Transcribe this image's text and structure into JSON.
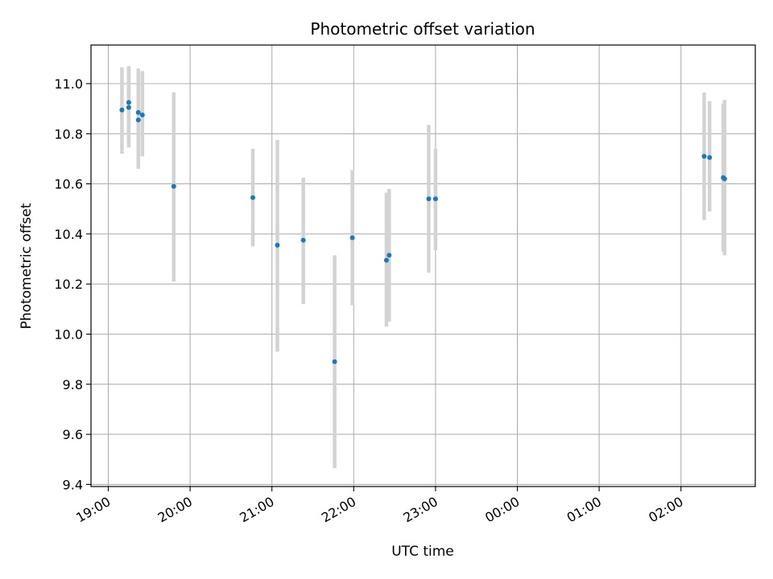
{
  "chart_data": {
    "type": "scatter",
    "title": "Photometric offset variation",
    "xlabel": "UTC time",
    "ylabel": "Photometric offset",
    "xlim": [
      "19:00",
      "02:55"
    ],
    "ylim": [
      9.39,
      11.15
    ],
    "x_tick_labels": [
      "19:00",
      "20:00",
      "21:00",
      "22:00",
      "23:00",
      "00:00",
      "01:00",
      "02:00"
    ],
    "y_tick_labels": [
      "9.4",
      "9.6",
      "9.8",
      "10.0",
      "10.2",
      "10.4",
      "10.6",
      "10.8",
      "11.0"
    ],
    "y_ticks": [
      9.4,
      9.6,
      9.8,
      10.0,
      10.2,
      10.4,
      10.6,
      10.8,
      11.0
    ],
    "grid": true,
    "marker_color": "#1f77b4",
    "errorbar_color": "#d3d3d3",
    "points": [
      {
        "t": "19:10",
        "y": 10.895,
        "lo": 10.72,
        "hi": 11.065
      },
      {
        "t": "19:15",
        "y": 10.925,
        "lo": 10.77,
        "hi": 11.07
      },
      {
        "t": "19:15",
        "y": 10.905,
        "lo": 10.745,
        "hi": 11.065
      },
      {
        "t": "19:22",
        "y": 10.855,
        "lo": 10.66,
        "hi": 11.06
      },
      {
        "t": "19:22",
        "y": 10.885,
        "lo": 10.73,
        "hi": 11.055
      },
      {
        "t": "19:25",
        "y": 10.875,
        "lo": 10.71,
        "hi": 11.05
      },
      {
        "t": "19:48",
        "y": 10.59,
        "lo": 10.21,
        "hi": 10.965
      },
      {
        "t": "20:46",
        "y": 10.545,
        "lo": 10.35,
        "hi": 10.74
      },
      {
        "t": "21:04",
        "y": 10.355,
        "lo": 9.93,
        "hi": 10.775
      },
      {
        "t": "21:23",
        "y": 10.375,
        "lo": 10.12,
        "hi": 10.625
      },
      {
        "t": "21:46",
        "y": 9.89,
        "lo": 9.465,
        "hi": 10.315
      },
      {
        "t": "21:59",
        "y": 10.385,
        "lo": 10.115,
        "hi": 10.655
      },
      {
        "t": "22:24",
        "y": 10.295,
        "lo": 10.03,
        "hi": 10.565
      },
      {
        "t": "22:26",
        "y": 10.315,
        "lo": 10.05,
        "hi": 10.58
      },
      {
        "t": "22:55",
        "y": 10.54,
        "lo": 10.245,
        "hi": 10.835
      },
      {
        "t": "23:00",
        "y": 10.54,
        "lo": 10.335,
        "hi": 10.74
      },
      {
        "t": "02:17",
        "y": 10.71,
        "lo": 10.455,
        "hi": 10.965
      },
      {
        "t": "02:21",
        "y": 10.705,
        "lo": 10.49,
        "hi": 10.93
      },
      {
        "t": "02:31",
        "y": 10.625,
        "lo": 10.33,
        "hi": 10.92
      },
      {
        "t": "02:32",
        "y": 10.62,
        "lo": 10.315,
        "hi": 10.935
      }
    ]
  }
}
